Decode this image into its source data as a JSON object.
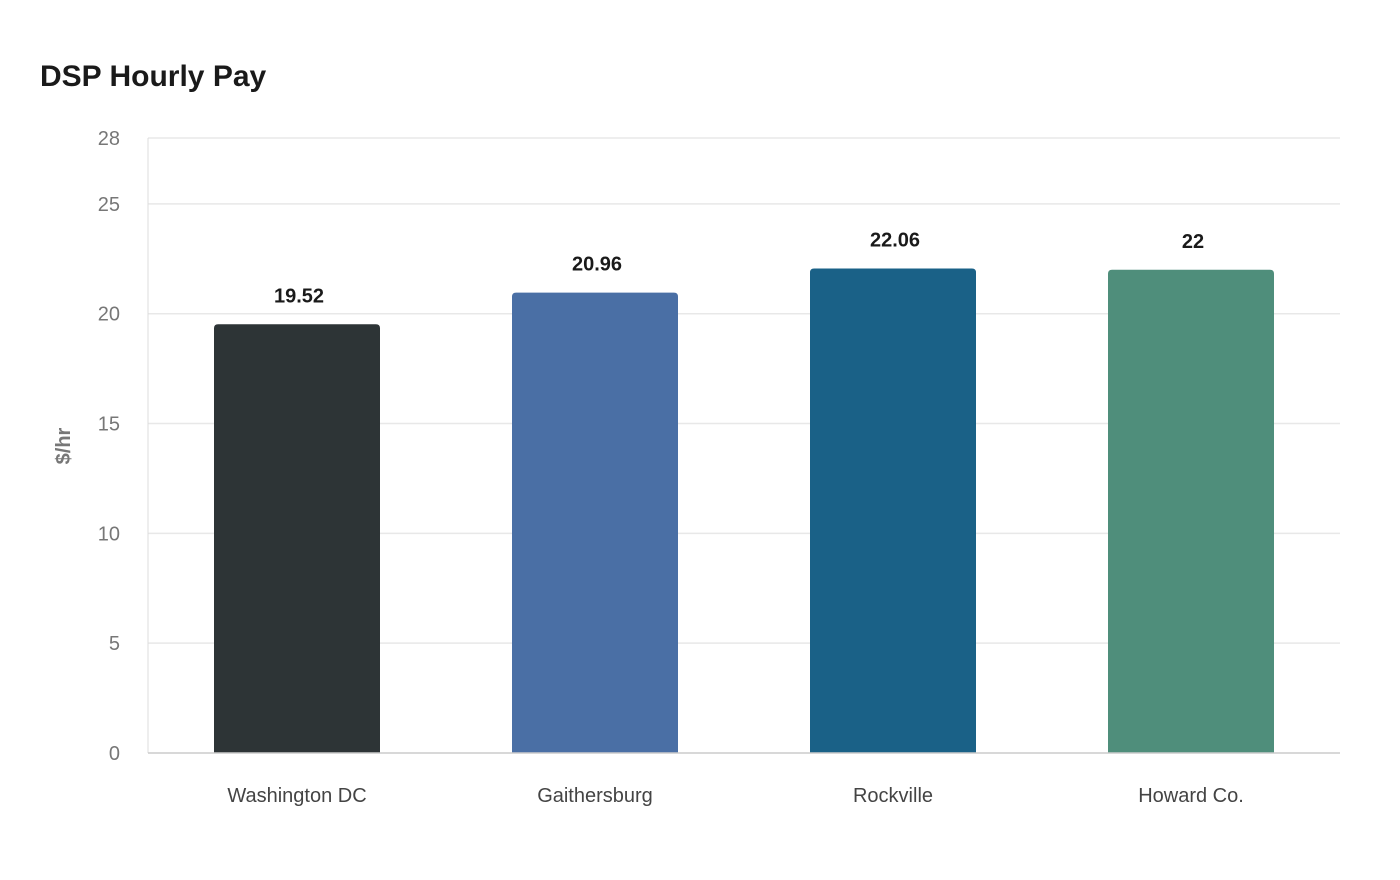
{
  "chart_data": {
    "type": "bar",
    "title": "DSP Hourly Pay",
    "xlabel": "",
    "ylabel": "$/hr",
    "ylim": [
      0,
      28
    ],
    "yticks": [
      0,
      5,
      10,
      15,
      20,
      25,
      28
    ],
    "grid": true,
    "legend": "none",
    "categories": [
      "Washington DC",
      "Gaithersburg",
      "Rockville",
      "Howard Co."
    ],
    "values": [
      19.52,
      20.96,
      22.06,
      22
    ],
    "data_labels": [
      "19.52",
      "20.96",
      "22.06",
      "22"
    ],
    "colors": [
      "#2d3436",
      "#4a6fa5",
      "#1a6187",
      "#4f8e7b"
    ]
  }
}
